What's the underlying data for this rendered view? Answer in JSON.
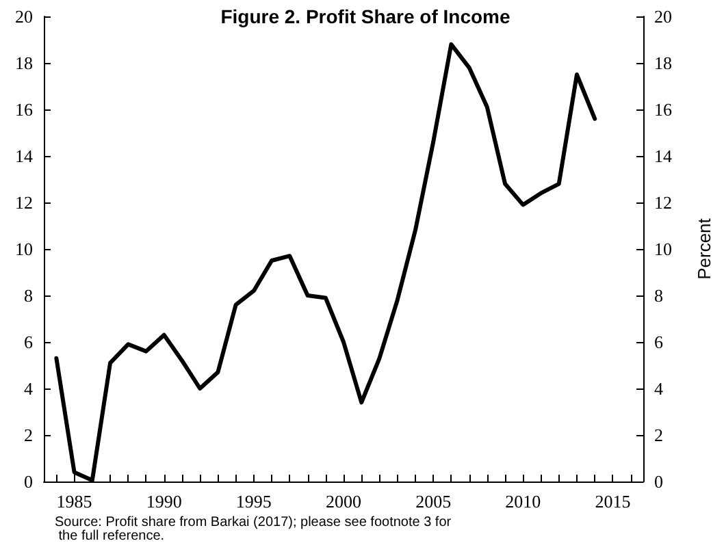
{
  "chart_data": {
    "type": "line",
    "title": "Figure 2. Profit Share of Income",
    "y2label": "Percent",
    "annotations": [
      "Source: Profit share from Barkai (2017); please see footnote 3 for the full reference."
    ],
    "x": [
      1984,
      1985,
      1986,
      1987,
      1988,
      1989,
      1990,
      1991,
      1992,
      1993,
      1994,
      1995,
      1996,
      1997,
      1998,
      1999,
      2000,
      2001,
      2002,
      2003,
      2004,
      2005,
      2006,
      2007,
      2008,
      2009,
      2010,
      2011,
      2012,
      2013,
      2014
    ],
    "series": [
      {
        "color": "#000000",
        "values": [
          5.3,
          0.4,
          0.05,
          5.1,
          5.9,
          5.6,
          6.3,
          5.2,
          4.0,
          4.7,
          7.6,
          8.2,
          9.5,
          9.7,
          8.0,
          7.9,
          6.0,
          3.4,
          5.3,
          7.8,
          10.8,
          14.6,
          18.8,
          17.8,
          16.1,
          12.8,
          11.9,
          12.4,
          12.8,
          17.5,
          15.6
        ]
      }
    ],
    "xlim": [
      1983.3,
      2016.7
    ],
    "xticks": [
      {
        "value": 1984,
        "label": null
      },
      1985,
      {
        "value": 1986,
        "label": null
      },
      {
        "value": 1987,
        "label": null
      },
      {
        "value": 1988,
        "label": null
      },
      {
        "value": 1989,
        "label": null
      },
      1990,
      {
        "value": 1991,
        "label": null
      },
      {
        "value": 1992,
        "label": null
      },
      {
        "value": 1993,
        "label": null
      },
      {
        "value": 1994,
        "label": null
      },
      1995,
      {
        "value": 1996,
        "label": null
      },
      {
        "value": 1997,
        "label": null
      },
      {
        "value": 1998,
        "label": null
      },
      {
        "value": 1999,
        "label": null
      },
      2000,
      {
        "value": 2001,
        "label": null
      },
      {
        "value": 2002,
        "label": null
      },
      {
        "value": 2003,
        "label": null
      },
      {
        "value": 2004,
        "label": null
      },
      2005,
      {
        "value": 2006,
        "label": null
      },
      {
        "value": 2007,
        "label": null
      },
      {
        "value": 2008,
        "label": null
      },
      {
        "value": 2009,
        "label": null
      },
      2010,
      {
        "value": 2011,
        "label": null
      },
      {
        "value": 2012,
        "label": null
      },
      {
        "value": 2013,
        "label": null
      },
      {
        "value": 2014,
        "label": null
      },
      2015,
      {
        "value": 2016,
        "label": null
      }
    ],
    "ylim": [
      0,
      20
    ],
    "yticks": [
      0,
      2,
      4,
      6,
      8,
      10,
      12,
      14,
      16,
      18,
      20
    ],
    "y2lim": [
      0,
      20
    ],
    "y2ticks": [
      0,
      2,
      4,
      6,
      8,
      10,
      12,
      14,
      16,
      18,
      20
    ],
    "grid": false,
    "marker": "none",
    "line_style": "solid"
  }
}
